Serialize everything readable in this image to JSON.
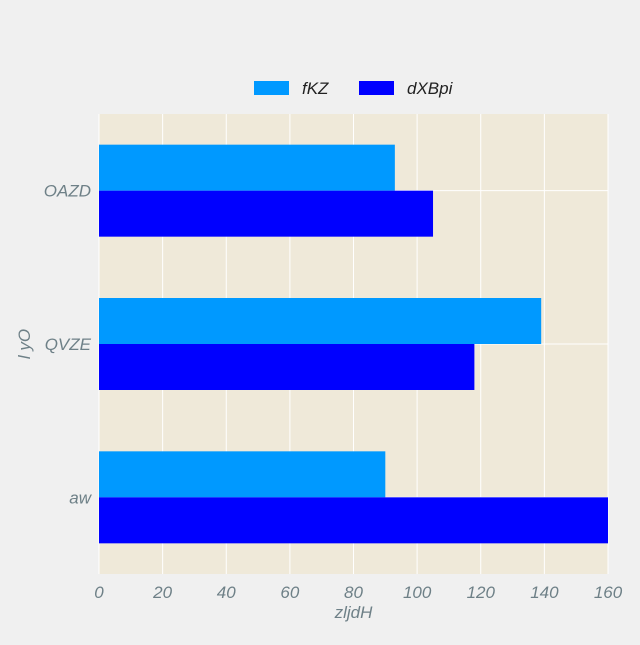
{
  "chart_data": {
    "type": "bar",
    "orientation": "horizontal",
    "title": "",
    "xlabel": "zljdH",
    "ylabel": "l yO",
    "categories": [
      "OAZD",
      "QVZE",
      "aw"
    ],
    "series": [
      {
        "name": "fKZ",
        "values": [
          93,
          139,
          90
        ],
        "color": "#0099ff"
      },
      {
        "name": "dXBpi",
        "values": [
          105,
          118,
          160
        ],
        "color": "#0000ff"
      }
    ],
    "xlim": [
      0,
      160
    ],
    "xticks": [
      0,
      20,
      40,
      60,
      80,
      100,
      120,
      140,
      160
    ],
    "grid": true,
    "legend_position": "top-center",
    "plot_background": "#efe9d9",
    "figure_background": "#f0f0f0",
    "grid_color": "#ffffff",
    "text_color": "#6e8087"
  }
}
